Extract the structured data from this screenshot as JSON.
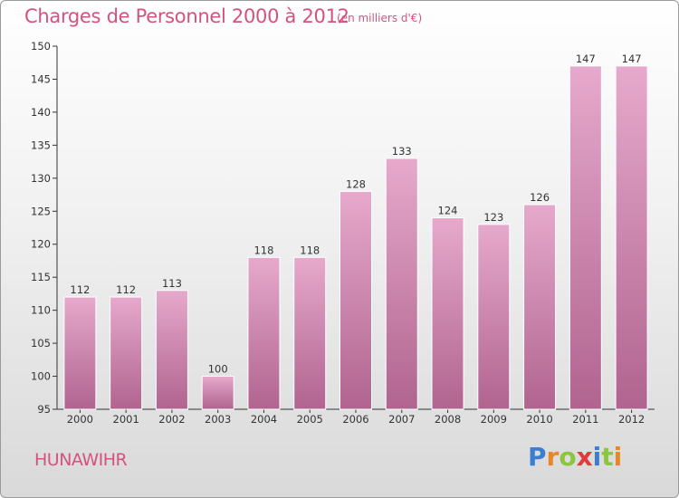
{
  "header": {
    "title": "Charges de Personnel 2000 à 2012",
    "subtitle": "(en milliers d'€)"
  },
  "footer": {
    "commune": "HUNAWIHR",
    "logo_letters": [
      "P",
      "r",
      "o",
      "x",
      "i",
      "t",
      "i"
    ],
    "logo_colors": [
      "#3a7fd0",
      "#e8872a",
      "#8cc63e",
      "#e23a3a",
      "#3a7fd0",
      "#8cc63e",
      "#e8872a"
    ]
  },
  "colors": {
    "bar_top": "#e6a9cc",
    "bar_bottom": "#b0648f",
    "axis": "#333333",
    "text": "#333333"
  },
  "chart_data": {
    "type": "bar",
    "title": "Charges de Personnel 2000 à 2012",
    "subtitle": "(en milliers d'€)",
    "categories": [
      "2000",
      "2001",
      "2002",
      "2003",
      "2004",
      "2005",
      "2006",
      "2007",
      "2008",
      "2009",
      "2010",
      "2011",
      "2012"
    ],
    "values": [
      112,
      112,
      113,
      100,
      118,
      118,
      128,
      133,
      124,
      123,
      126,
      147,
      147
    ],
    "ylim": [
      95,
      150
    ],
    "yticks": [
      95,
      100,
      105,
      110,
      115,
      120,
      125,
      130,
      135,
      140,
      145,
      150
    ],
    "data_labels": true,
    "grid": false
  }
}
